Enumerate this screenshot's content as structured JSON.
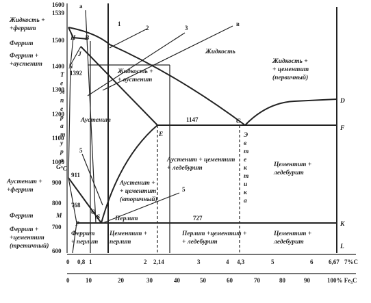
{
  "left_labels": [
    [
      "Жидкость +",
      "+феррит"
    ],
    [
      "Феррит"
    ],
    [
      "Феррит +",
      "+аустенит"
    ],
    [
      "Аустенит +",
      "+феррит"
    ],
    [
      "Феррит"
    ],
    [
      "Феррит +",
      "+цементит",
      "(третичный)"
    ]
  ],
  "temperature_ticks": [
    "1600",
    "1539",
    "1500",
    "1400",
    "1300",
    "1200",
    "1100",
    "1000",
    "900",
    "800",
    "700",
    "600"
  ],
  "temperature_axis_letters": [
    "Т",
    "е",
    "м",
    "п",
    "е",
    "р",
    "а",
    "т",
    "у",
    "р",
    "а",
    "°С"
  ],
  "special_temperatures": [
    "1392",
    "911",
    "768",
    "1147",
    "727"
  ],
  "points": [
    "H",
    "B",
    "J",
    "N",
    "G",
    "M",
    "E",
    "C",
    "D",
    "F",
    "S",
    "P",
    "K",
    "L",
    "O"
  ],
  "line_numbers": [
    "а",
    "1",
    "2",
    "3",
    "в",
    "5",
    "5"
  ],
  "regions": [
    [
      "Жидкость"
    ],
    [
      "Жидкость +",
      "+ аустенит"
    ],
    [
      "Жидкость +",
      "+ цементит",
      "(первичный)"
    ],
    [
      "Аустенит"
    ],
    [
      "Аустенит + цементит",
      "+ ледебурит"
    ],
    [
      "Цементит +",
      "ледебурит"
    ],
    [
      "Аустенит +",
      "+ цементит",
      "(вторичный)"
    ],
    [
      "Перлит"
    ],
    [
      "Феррит",
      "+ перлит"
    ],
    [
      "Цементит +",
      "перлит"
    ],
    [
      "Перлит +цементит +",
      "+ ледебурит"
    ],
    [
      "Цементит +",
      "ледебурит"
    ]
  ],
  "eutectic_letters": [
    "Э",
    "в",
    "т",
    "е",
    "к",
    "т",
    "и",
    "к",
    "а"
  ],
  "carbon_ticks": [
    "0",
    "0,8",
    "1",
    "2",
    "2,14",
    "3",
    "4",
    "4,3",
    "5",
    "6",
    "6,67",
    "7%С"
  ],
  "cementite_ticks": [
    "0",
    "10",
    "20",
    "30",
    "40",
    "50",
    "60",
    "70",
    "80",
    "90",
    "100% Fe₃C"
  ]
}
